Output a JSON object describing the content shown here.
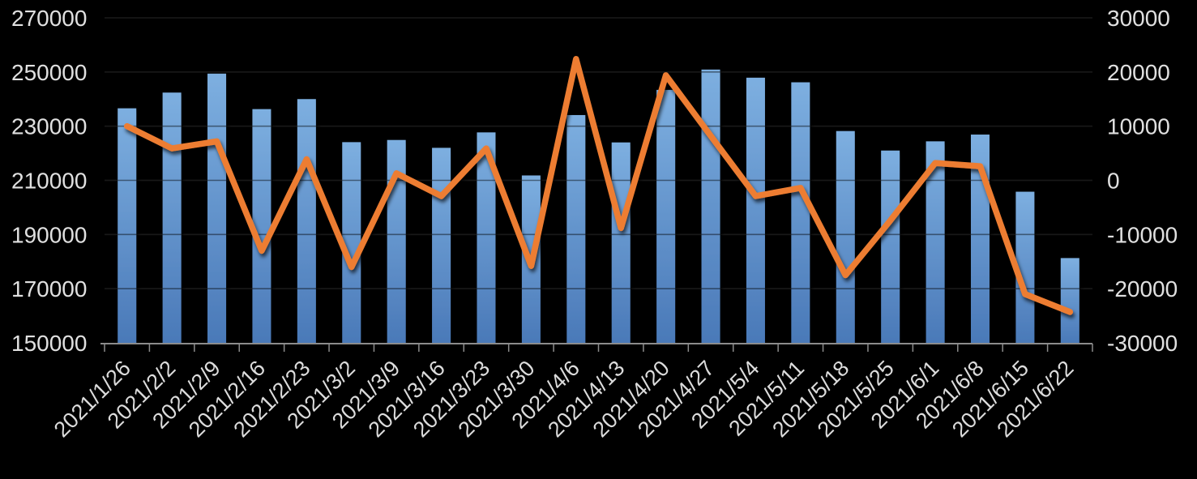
{
  "chart_data": {
    "type": "combo",
    "title": "",
    "legend_position": "none",
    "grid": true,
    "categories": [
      "2021/1/26",
      "2021/2/2",
      "2021/2/9",
      "2021/2/16",
      "2021/2/23",
      "2021/3/2",
      "2021/3/9",
      "2021/3/16",
      "2021/3/23",
      "2021/3/30",
      "2021/4/6",
      "2021/4/13",
      "2021/4/20",
      "2021/4/27",
      "2021/5/4",
      "2021/5/11",
      "2021/5/18",
      "2021/5/25",
      "2021/6/1",
      "2021/6/8",
      "2021/6/15",
      "2021/6/22"
    ],
    "series": [
      {
        "role": "bar-series",
        "chart_type": "bar",
        "axis": "left",
        "values": [
          236600,
          242400,
          249400,
          236300,
          240000,
          224100,
          224900,
          222000,
          227700,
          211800,
          234100,
          224000,
          243400,
          250900,
          247900,
          246200,
          228200,
          221000,
          224400,
          226900,
          205800,
          181300
        ]
      },
      {
        "role": "line-series",
        "chart_type": "line",
        "axis": "right",
        "values": [
          10000,
          5900,
          7200,
          -13000,
          3900,
          -16000,
          1300,
          -2900,
          5900,
          -15800,
          22400,
          -8800,
          19400,
          8200,
          -2900,
          -1400,
          -17500,
          -7400,
          3200,
          2600,
          -21000,
          -24300
        ]
      }
    ],
    "left_axis": {
      "min": 150000,
      "max": 270000,
      "step": 20000,
      "ticks": [
        270000,
        250000,
        230000,
        210000,
        190000,
        170000,
        150000
      ]
    },
    "right_axis": {
      "min": -30000,
      "max": 30000,
      "step": 10000,
      "ticks": [
        30000,
        20000,
        10000,
        0,
        -10000,
        -20000,
        -30000
      ]
    }
  },
  "style": {
    "background": "#000000",
    "bar_gradient_top": "#7DAFE0",
    "bar_gradient_bottom": "#4A79B8",
    "line_color": "#ED7D31",
    "gridline_color": "#2D2D2D",
    "axis_line_color": "#8C8C8C",
    "label_color": "#E0E0E0"
  }
}
